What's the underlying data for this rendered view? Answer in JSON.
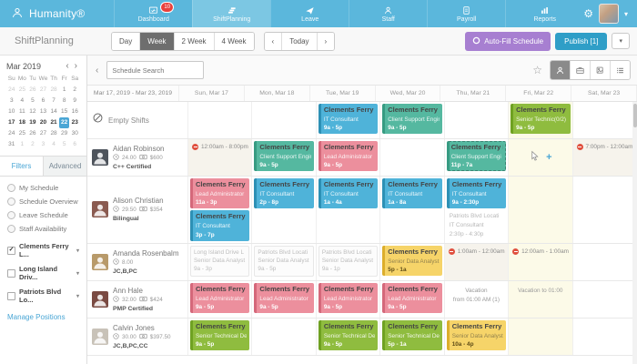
{
  "brand": {
    "name": "Humanity®"
  },
  "icons": {
    "gear": "⚙",
    "star": "☆",
    "caret_down": "▾",
    "prev": "‹",
    "next": "›",
    "collapse": "‹",
    "plus": "+"
  },
  "colors": {
    "nav": "#5bb7dc",
    "nav_active": "#7cc7e3",
    "badge": "#e8413c",
    "publish": "#2f9ec7",
    "autofill": "#a77fd1",
    "shift_blue": "#4fb3d9",
    "shift_teal": "#55b8a0",
    "shift_pink": "#ec8f9d",
    "shift_green": "#8fbc3f",
    "shift_yellow": "#f6d469",
    "highlight_col": "#fcfae8",
    "selected_day": "#4aa6d5"
  },
  "topnav": {
    "tabs": [
      {
        "id": "dashboard",
        "label": "Dashboard",
        "badge": "10"
      },
      {
        "id": "shiftplanning",
        "label": "ShiftPlanning",
        "active": true
      },
      {
        "id": "leave",
        "label": "Leave"
      },
      {
        "id": "staff",
        "label": "Staff"
      },
      {
        "id": "payroll",
        "label": "Payroll"
      },
      {
        "id": "reports",
        "label": "Reports"
      }
    ]
  },
  "toolbar": {
    "title": "ShiftPlanning",
    "view_modes": [
      "Day",
      "Week",
      "2 Week",
      "4 Week"
    ],
    "active_view": "Week",
    "today": "Today",
    "autofill": "Auto-Fill Schedule",
    "publish": "Publish [1]"
  },
  "sidebar": {
    "calendar": {
      "month": "Mar 2019",
      "weekdays": [
        "Su",
        "Mo",
        "Tu",
        "We",
        "Th",
        "Fr",
        "Sa"
      ],
      "weeks": [
        [
          {
            "d": "24",
            "m": 1
          },
          {
            "d": "25",
            "m": 1
          },
          {
            "d": "26",
            "m": 1
          },
          {
            "d": "27",
            "m": 1
          },
          {
            "d": "28",
            "m": 1
          },
          {
            "d": "1"
          },
          {
            "d": "2"
          }
        ],
        [
          {
            "d": "3"
          },
          {
            "d": "4"
          },
          {
            "d": "5"
          },
          {
            "d": "6"
          },
          {
            "d": "7"
          },
          {
            "d": "8"
          },
          {
            "d": "9"
          }
        ],
        [
          {
            "d": "10"
          },
          {
            "d": "11"
          },
          {
            "d": "12"
          },
          {
            "d": "13"
          },
          {
            "d": "14"
          },
          {
            "d": "15"
          },
          {
            "d": "16"
          }
        ],
        [
          {
            "d": "17",
            "b": 1
          },
          {
            "d": "18",
            "b": 1
          },
          {
            "d": "19",
            "b": 1
          },
          {
            "d": "20",
            "b": 1
          },
          {
            "d": "21",
            "b": 1
          },
          {
            "d": "22",
            "s": 1
          },
          {
            "d": "23",
            "b": 1
          }
        ],
        [
          {
            "d": "24"
          },
          {
            "d": "25"
          },
          {
            "d": "26"
          },
          {
            "d": "27"
          },
          {
            "d": "28"
          },
          {
            "d": "29"
          },
          {
            "d": "30"
          }
        ],
        [
          {
            "d": "31"
          },
          {
            "d": "1",
            "m": 1
          },
          {
            "d": "2",
            "m": 1
          },
          {
            "d": "3",
            "m": 1
          },
          {
            "d": "4",
            "m": 1
          },
          {
            "d": "5",
            "m": 1
          },
          {
            "d": "6",
            "m": 1
          }
        ]
      ]
    },
    "tabs": {
      "filters": "Filters",
      "advanced": "Advanced"
    },
    "radio_options": [
      "My Schedule",
      "Schedule Overview",
      "Leave Schedule",
      "Staff Availability"
    ],
    "locations": [
      {
        "label": "Clements Ferry L...",
        "checked": true
      },
      {
        "label": "Long Island Driv...",
        "checked": false
      },
      {
        "label": "Patriots Blvd Lo...",
        "checked": false
      }
    ],
    "manage_link": "Manage Positions"
  },
  "schedule": {
    "search_placeholder": "Schedule Search",
    "columns": [
      "Mar 17, 2019 - Mar 23, 2019",
      "Sun, Mar 17",
      "Mon, Mar 18",
      "Tue, Mar 19",
      "Wed, Mar 20",
      "Thu, Mar 21",
      "Fri, Mar 22",
      "Sat, Mar 23"
    ],
    "highlight_day_index": 5,
    "rows": [
      {
        "type": "empty",
        "label": "Empty Shifts",
        "cells": [
          [],
          [],
          [
            {
              "kind": "shift",
              "color": "blue",
              "location": "Clements Ferry Loc",
              "position": "IT Consultant",
              "time": "9a - 5p"
            }
          ],
          [
            {
              "kind": "shift",
              "color": "teal",
              "location": "Clements Ferry Loc",
              "position": "Client Support Engin",
              "time": "9a - 5p"
            }
          ],
          [],
          [
            {
              "kind": "shift",
              "color": "green",
              "location": "Clements Ferry Loc",
              "position": "Senior Technic(0/2)",
              "time": "9a - 5p"
            }
          ],
          []
        ]
      },
      {
        "type": "employee",
        "name": "Aidan Robinson",
        "hours": "24.00",
        "pay": "$600",
        "skills": "C++ Certified",
        "avatar_color": "#4e545c",
        "cells": [
          [
            {
              "kind": "unavail",
              "time": "12:00am - 8:00pm"
            }
          ],
          [
            {
              "kind": "shift",
              "color": "teal",
              "location": "Clements Ferry Loc",
              "position": "Client Support Engin",
              "time": "9a - 5p"
            }
          ],
          [
            {
              "kind": "shift",
              "color": "pink",
              "location": "Clements Ferry Loc",
              "position": "Lead Administrator",
              "time": "9a - 5p"
            }
          ],
          [],
          [
            {
              "kind": "shift",
              "color": "teal",
              "dashed": true,
              "location": "Clements Ferry Loc",
              "position": "Client Support Engi",
              "time": "11p - 7a"
            }
          ],
          [
            {
              "kind": "add"
            }
          ],
          [
            {
              "kind": "unavail",
              "time": "7:00pm - 12:00am"
            }
          ]
        ]
      },
      {
        "type": "employee",
        "name": "Alison Christian",
        "hours": "29.50",
        "pay": "$354",
        "skills": "Bilingual",
        "avatar_color": "#8a5a50",
        "cells": [
          [
            {
              "kind": "shift",
              "color": "pink",
              "location": "Clements Ferry Loc",
              "position": "Lead Administrator",
              "time": "11a - 3p"
            },
            {
              "kind": "shift",
              "color": "blue",
              "location": "Clements Ferry Loc",
              "position": "IT Consultant",
              "time": "3p - 7p"
            }
          ],
          [
            {
              "kind": "shift",
              "color": "blue",
              "location": "Clements Ferry Loc",
              "position": "IT Consultant",
              "time": "2p - 8p"
            }
          ],
          [
            {
              "kind": "shift",
              "color": "blue",
              "location": "Clements Ferry Loc",
              "position": "IT Consultant",
              "time": "1a - 4a"
            }
          ],
          [
            {
              "kind": "shift",
              "color": "blue",
              "location": "Clements Ferry Loc",
              "position": "IT Consultant",
              "time": "1a - 8a"
            }
          ],
          [
            {
              "kind": "shift",
              "color": "blue",
              "location": "Clements Ferry Loc",
              "position": "IT Consultant",
              "time": "9a - 2:30p"
            },
            {
              "kind": "ghosttext",
              "location": "Patriots Blvd Locati",
              "position": "IT Consultant",
              "time": "2:30p - 4:30p"
            }
          ],
          [],
          []
        ]
      },
      {
        "type": "employee",
        "name": "Amanda Rosenbalm",
        "hours": "8.00",
        "pay": null,
        "skills": "JC,B,PC",
        "avatar_color": "#b89a6a",
        "cells": [
          [
            {
              "kind": "ghost",
              "location": "Long Island Drive L",
              "position": "Senior Data Analyst",
              "time": "9a - 3p"
            }
          ],
          [
            {
              "kind": "ghost",
              "location": "Patriots Blvd Locati",
              "position": "Senior Data Analyst",
              "time": "9a - 5p"
            }
          ],
          [
            {
              "kind": "ghost",
              "location": "Patriots Blvd Locati",
              "position": "Senior Data Analyst",
              "time": "9a - 1p"
            }
          ],
          [
            {
              "kind": "shift",
              "color": "yellow",
              "location": "Clements Ferry Loc",
              "position": "Senior Data Analyst",
              "time": "5p - 1a"
            }
          ],
          [
            {
              "kind": "unavail",
              "time": "1:00am - 12:00am"
            }
          ],
          [
            {
              "kind": "unavail",
              "time": "12:00am - 1:00am"
            }
          ],
          []
        ]
      },
      {
        "type": "employee",
        "name": "Ann Hale",
        "hours": "32.00",
        "pay": "$424",
        "skills": "PMP Certified",
        "avatar_color": "#7a4a42",
        "cells": [
          [
            {
              "kind": "shift",
              "color": "pink",
              "location": "Clements Ferry Loc",
              "position": "Lead Administrator",
              "time": "9a - 5p"
            }
          ],
          [
            {
              "kind": "shift",
              "color": "pink",
              "location": "Clements Ferry Loc",
              "position": "Lead Administrator",
              "time": "9a - 5p"
            }
          ],
          [
            {
              "kind": "shift",
              "color": "pink",
              "location": "Clements Ferry Loc",
              "position": "Lead Administrator",
              "time": "9a - 5p"
            }
          ],
          [
            {
              "kind": "shift",
              "color": "pink",
              "location": "Clements Ferry Loc",
              "position": "Lead Administrator",
              "time": "9a - 5p"
            }
          ],
          [
            {
              "kind": "vacation",
              "lines": [
                "Vacation",
                "from 01:00 AM (1)"
              ]
            }
          ],
          [
            {
              "kind": "vacation",
              "lines": [
                "Vacation to 01:00"
              ]
            }
          ],
          []
        ]
      },
      {
        "type": "employee",
        "name": "Calvin Jones",
        "hours": "30.00",
        "pay": "$397.50",
        "skills": "JC,B,PC,CC",
        "avatar_color": "#c8c2b8",
        "cells": [
          [
            {
              "kind": "shift",
              "color": "green",
              "location": "Clements Ferry Loc",
              "position": "Senior Technical De",
              "time": "9a - 5p"
            }
          ],
          [],
          [
            {
              "kind": "shift",
              "color": "green",
              "location": "Clements Ferry Loc",
              "position": "Senior Technical De",
              "time": "9a - 5p"
            }
          ],
          [
            {
              "kind": "shift",
              "color": "green",
              "location": "Clements Ferry Loc",
              "position": "Senior Technical De",
              "time": "5p - 1a"
            }
          ],
          [
            {
              "kind": "shift",
              "color": "yellow",
              "location": "Clements Ferry Loc",
              "position": "Senior Data Analyst",
              "time": "10a - 4p"
            }
          ],
          [],
          []
        ]
      }
    ]
  }
}
